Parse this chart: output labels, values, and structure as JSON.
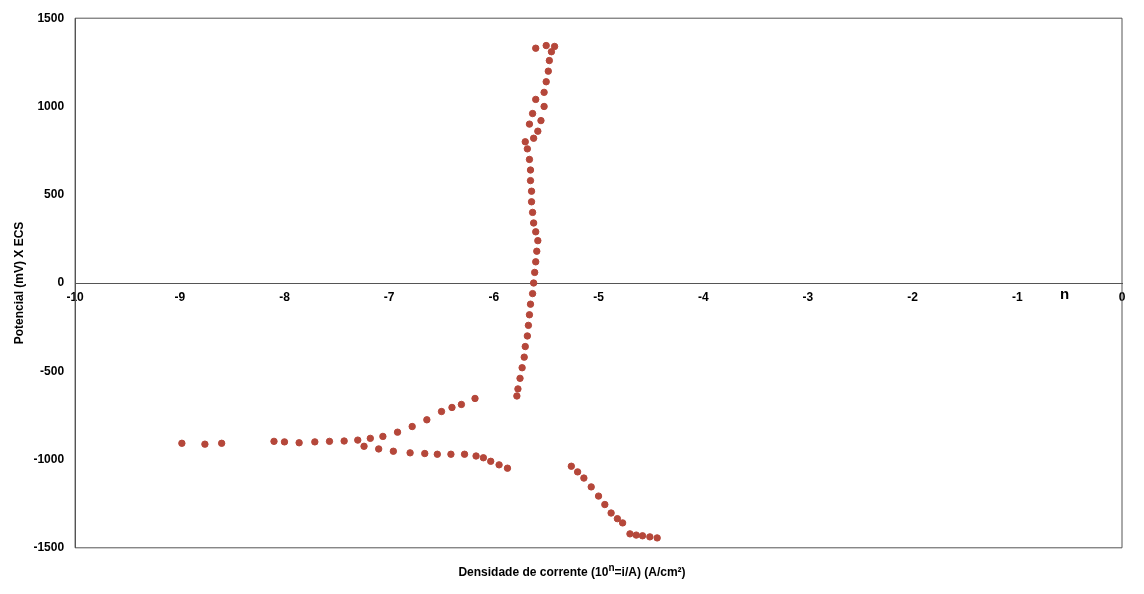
{
  "chart_data": {
    "type": "scatter",
    "xlabel": "Densidade de corrente (10$^{n}$=i/A) (A/cm²)",
    "ylabel": "Potencial (mV) X ECS",
    "annotations": [
      "n"
    ],
    "xlim": [
      -10,
      0
    ],
    "xticks": [
      -10,
      -9,
      -8,
      -7,
      -6,
      -5,
      -4,
      -3,
      -2,
      -1,
      0
    ],
    "ylim": [
      -1500,
      1500
    ],
    "yticks": [
      -1500,
      -1000,
      -500,
      0,
      500,
      1000,
      1500
    ],
    "grid": false,
    "legend": false,
    "marker": "circle",
    "series": [
      {
        "color": "#b5473a",
        "x": [
          -8.98,
          -8.76,
          -8.6,
          -8.1,
          -8.0,
          -7.86,
          -7.71,
          -7.57,
          -7.43,
          -7.3,
          -7.18,
          -7.06,
          -6.92,
          -6.78,
          -6.64,
          -6.5,
          -6.4,
          -6.31,
          -6.18,
          -7.24,
          -7.1,
          -6.96,
          -6.8,
          -6.66,
          -6.54,
          -6.41,
          -6.28,
          -6.17,
          -6.1,
          -6.03,
          -5.95,
          -5.87,
          -5.26,
          -5.2,
          -5.14,
          -5.07,
          -5.0,
          -4.94,
          -4.88,
          -4.82,
          -4.77,
          -4.7,
          -4.64,
          -4.58,
          -4.51,
          -4.44,
          -5.78,
          -5.77,
          -5.75,
          -5.73,
          -5.71,
          -5.7,
          -5.68,
          -5.67,
          -5.66,
          -5.65,
          -5.63,
          -5.62,
          -5.61,
          -5.6,
          -5.59,
          -5.58,
          -5.6,
          -5.62,
          -5.63,
          -5.64,
          -5.64,
          -5.65,
          -5.65,
          -5.66,
          -5.68,
          -5.7,
          -5.62,
          -5.58,
          -5.66,
          -5.55,
          -5.63,
          -5.52,
          -5.6,
          -5.52,
          -5.5,
          -5.48,
          -5.47,
          -5.45,
          -5.6,
          -5.5,
          -5.42
        ],
        "values": [
          -908,
          -913,
          -908,
          -897,
          -900,
          -905,
          -900,
          -897,
          -895,
          -890,
          -880,
          -869,
          -845,
          -813,
          -775,
          -728,
          -705,
          -688,
          -654,
          -925,
          -940,
          -953,
          -962,
          -966,
          -970,
          -970,
          -970,
          -980,
          -990,
          -1010,
          -1030,
          -1049,
          -1038,
          -1070,
          -1105,
          -1155,
          -1207,
          -1255,
          -1303,
          -1335,
          -1359,
          -1421,
          -1428,
          -1432,
          -1438,
          -1444,
          -640,
          -600,
          -540,
          -480,
          -420,
          -360,
          -300,
          -240,
          -180,
          -120,
          -60,
          0,
          60,
          120,
          180,
          240,
          290,
          340,
          400,
          460,
          520,
          580,
          640,
          700,
          760,
          800,
          820,
          860,
          900,
          920,
          960,
          1000,
          1040,
          1080,
          1140,
          1200,
          1260,
          1310,
          1330,
          1345,
          1340
        ]
      }
    ]
  }
}
